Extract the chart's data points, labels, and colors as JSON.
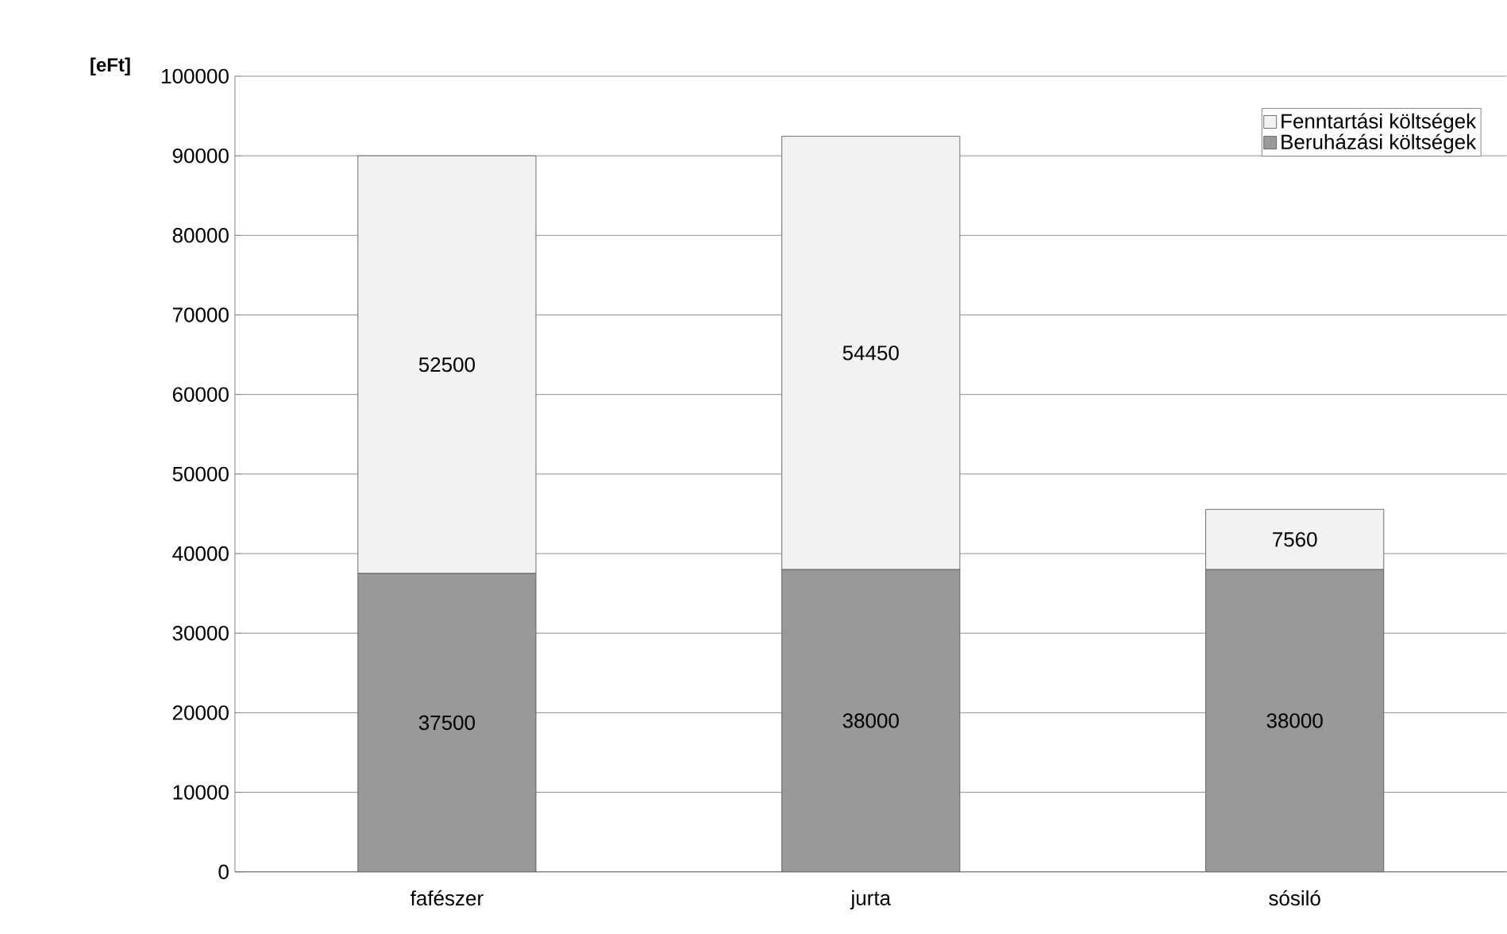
{
  "chart_data": {
    "type": "bar",
    "stacked": true,
    "ylabel": "[eFt]",
    "categories": [
      "fafészer",
      "jurta",
      "sósiló"
    ],
    "series": [
      {
        "name": "Beruházási költségek",
        "color": "#999999",
        "values": [
          37500,
          38000,
          38000
        ]
      },
      {
        "name": "Fenntartási költségek",
        "color": "#f2f2f2",
        "values": [
          52500,
          54450,
          7560
        ]
      }
    ],
    "ylim": [
      0,
      100000
    ],
    "yticks": [
      0,
      10000,
      20000,
      30000,
      40000,
      50000,
      60000,
      70000,
      80000,
      90000,
      100000
    ],
    "grid": "y",
    "legend": "top right",
    "data_labels": true
  }
}
